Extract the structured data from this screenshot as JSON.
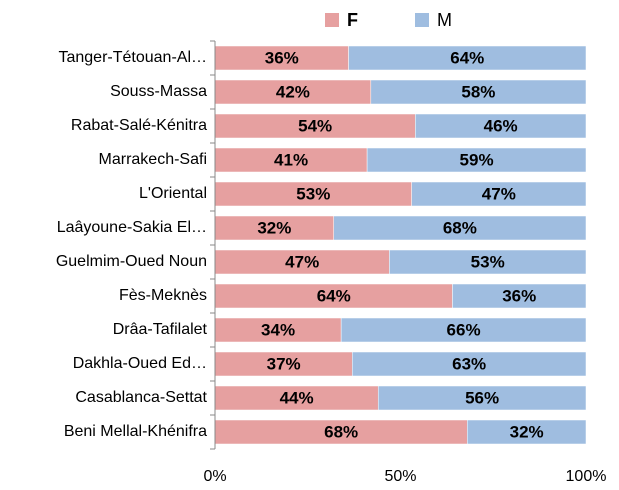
{
  "chart_data": {
    "type": "stacked_barh",
    "categories": [
      "Tanger-Tétouan-Al…",
      "Souss-Massa",
      "Rabat-Salé-Kénitra",
      "Marrakech-Safi",
      "L'Oriental",
      "Laâyoune-Sakia El…",
      "Guelmim-Oued Noun",
      "Fès-Meknès",
      "Drâa-Tafilalet",
      "Dakhla-Oued Ed…",
      "Casablanca-Settat",
      "Beni Mellal-Khénifra"
    ],
    "series": [
      {
        "name": "F",
        "color": "#e6a0a0",
        "label_color": "#c00000",
        "values": [
          36,
          42,
          54,
          41,
          53,
          32,
          47,
          64,
          34,
          37,
          44,
          68
        ],
        "value_labels": [
          "36%",
          "42%",
          "54%",
          "41%",
          "53%",
          "32%",
          "47%",
          "64%",
          "34%",
          "37%",
          "44%",
          "68%"
        ]
      },
      {
        "name": "M",
        "color": "#9fbde0",
        "label_color": "#1f3864",
        "values": [
          64,
          58,
          46,
          59,
          47,
          68,
          53,
          36,
          66,
          63,
          56,
          32
        ],
        "value_labels": [
          "64%",
          "58%",
          "46%",
          "59%",
          "47%",
          "68%",
          "53%",
          "36%",
          "66%",
          "63%",
          "56%",
          "32%"
        ]
      }
    ],
    "xlim": [
      0,
      100
    ],
    "xticks": [
      {
        "value": 0,
        "label": "0%"
      },
      {
        "value": 50,
        "label": "50%"
      },
      {
        "value": 100,
        "label": "100%"
      }
    ],
    "legend": "top"
  }
}
